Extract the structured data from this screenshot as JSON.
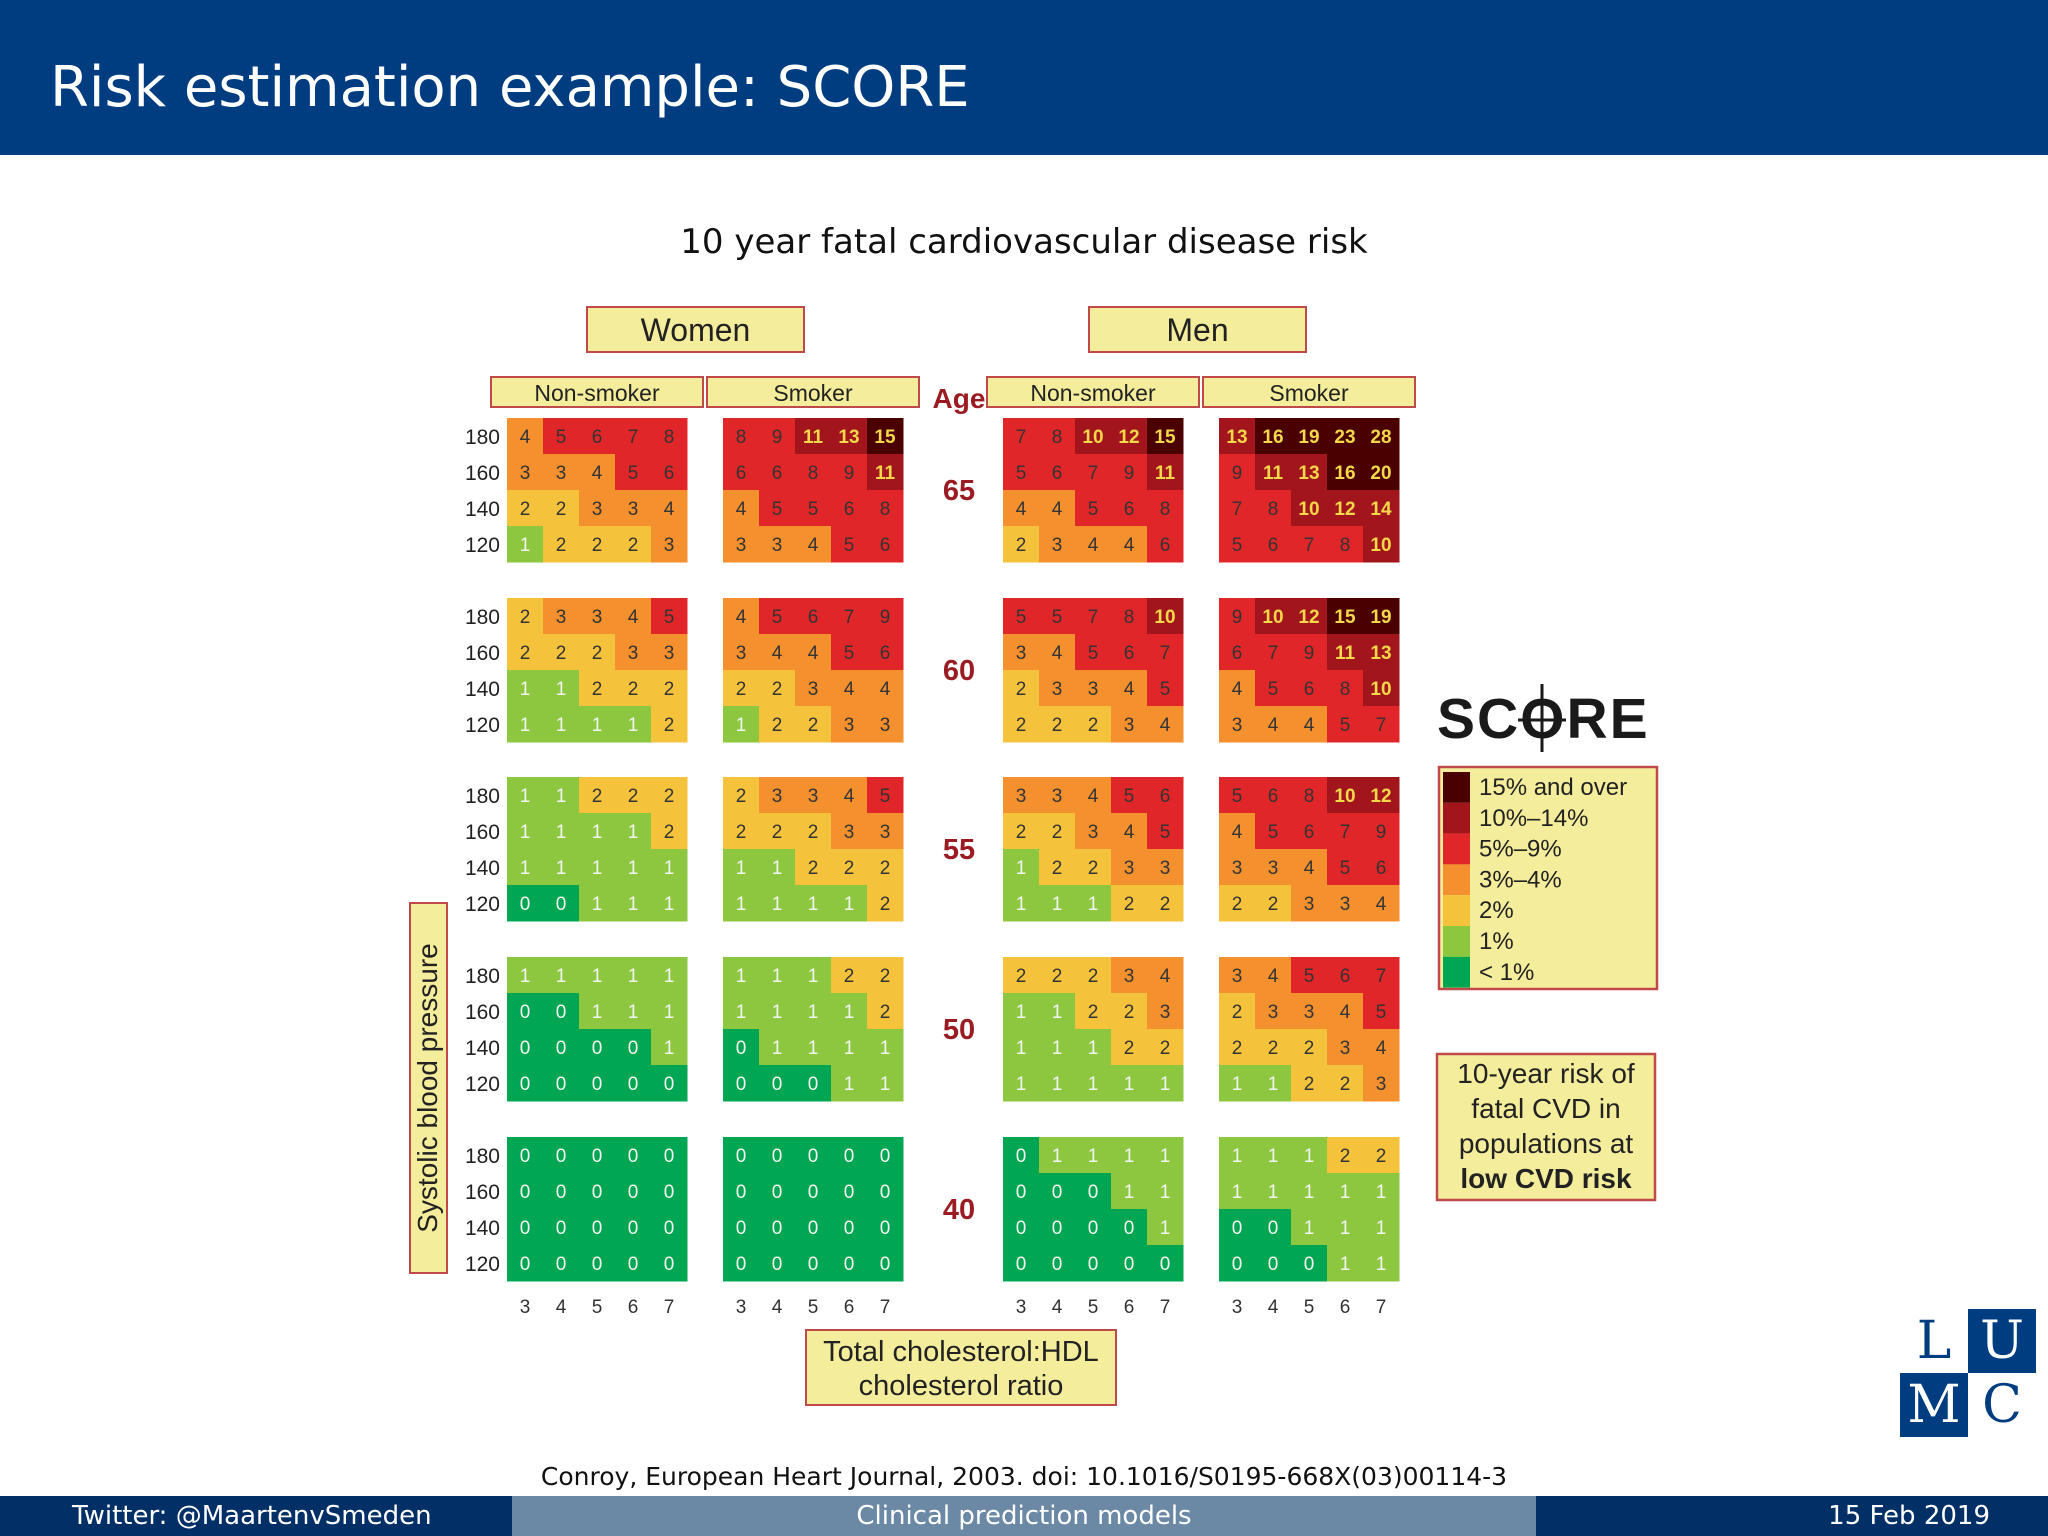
{
  "slide": {
    "title": "Risk estimation example: SCORE",
    "citation": "Conroy, European Heart Journal, 2003. doi: 10.1016/S0195-668X(03)00114-3"
  },
  "footer": {
    "left": "Twitter: @MaartenvSmeden",
    "center": "Clinical prediction models",
    "right": "15 Feb 2019"
  },
  "logo": {
    "letters": [
      "L",
      "U",
      "M",
      "C"
    ],
    "color": "#003c80"
  },
  "chart_data": {
    "type": "heatmap",
    "title": "10 year fatal cardiovascular disease risk",
    "sexes": [
      "Women",
      "Men"
    ],
    "smoking": [
      "Non-smoker",
      "Smoker"
    ],
    "age_label": "Age",
    "ages": [
      "65",
      "60",
      "55",
      "50",
      "40"
    ],
    "sbp_ticks": [
      "180",
      "160",
      "140",
      "120"
    ],
    "chol_ticks": [
      "3",
      "4",
      "5",
      "6",
      "7"
    ],
    "ylabel": "Systolic blood pressure",
    "xlabel": [
      "Total cholesterol:HDL",
      "cholesterol ratio"
    ],
    "grids": {
      "women_nonsmoker": [
        [
          [
            4,
            5,
            6,
            7,
            8
          ],
          [
            3,
            3,
            4,
            5,
            6
          ],
          [
            2,
            2,
            3,
            3,
            4
          ],
          [
            1,
            2,
            2,
            2,
            3
          ]
        ],
        [
          [
            2,
            3,
            3,
            4,
            5
          ],
          [
            2,
            2,
            2,
            3,
            3
          ],
          [
            1,
            1,
            2,
            2,
            2
          ],
          [
            1,
            1,
            1,
            1,
            2
          ]
        ],
        [
          [
            1,
            1,
            2,
            2,
            2
          ],
          [
            1,
            1,
            1,
            1,
            2
          ],
          [
            1,
            1,
            1,
            1,
            1
          ],
          [
            0,
            0,
            1,
            1,
            1
          ]
        ],
        [
          [
            1,
            1,
            1,
            1,
            1
          ],
          [
            0,
            0,
            1,
            1,
            1
          ],
          [
            0,
            0,
            0,
            0,
            1
          ],
          [
            0,
            0,
            0,
            0,
            0
          ]
        ],
        [
          [
            0,
            0,
            0,
            0,
            0
          ],
          [
            0,
            0,
            0,
            0,
            0
          ],
          [
            0,
            0,
            0,
            0,
            0
          ],
          [
            0,
            0,
            0,
            0,
            0
          ]
        ]
      ],
      "women_smoker": [
        [
          [
            8,
            9,
            11,
            13,
            15
          ],
          [
            6,
            6,
            8,
            9,
            11
          ],
          [
            4,
            5,
            5,
            6,
            8
          ],
          [
            3,
            3,
            4,
            5,
            6
          ]
        ],
        [
          [
            4,
            5,
            6,
            7,
            9
          ],
          [
            3,
            4,
            4,
            5,
            6
          ],
          [
            2,
            2,
            3,
            4,
            4
          ],
          [
            1,
            2,
            2,
            3,
            3
          ]
        ],
        [
          [
            2,
            3,
            3,
            4,
            5
          ],
          [
            2,
            2,
            2,
            3,
            3
          ],
          [
            1,
            1,
            2,
            2,
            2
          ],
          [
            1,
            1,
            1,
            1,
            2
          ]
        ],
        [
          [
            1,
            1,
            1,
            2,
            2
          ],
          [
            1,
            1,
            1,
            1,
            2
          ],
          [
            0,
            1,
            1,
            1,
            1
          ],
          [
            0,
            0,
            0,
            1,
            1
          ]
        ],
        [
          [
            0,
            0,
            0,
            0,
            0
          ],
          [
            0,
            0,
            0,
            0,
            0
          ],
          [
            0,
            0,
            0,
            0,
            0
          ],
          [
            0,
            0,
            0,
            0,
            0
          ]
        ]
      ],
      "men_nonsmoker": [
        [
          [
            7,
            8,
            10,
            12,
            15
          ],
          [
            5,
            6,
            7,
            9,
            11
          ],
          [
            4,
            4,
            5,
            6,
            8
          ],
          [
            2,
            3,
            4,
            4,
            6
          ]
        ],
        [
          [
            5,
            5,
            7,
            8,
            10
          ],
          [
            3,
            4,
            5,
            6,
            7
          ],
          [
            2,
            3,
            3,
            4,
            5
          ],
          [
            2,
            2,
            2,
            3,
            4
          ]
        ],
        [
          [
            3,
            3,
            4,
            5,
            6
          ],
          [
            2,
            2,
            3,
            4,
            5
          ],
          [
            1,
            2,
            2,
            3,
            3
          ],
          [
            1,
            1,
            1,
            2,
            2
          ]
        ],
        [
          [
            2,
            2,
            2,
            3,
            4
          ],
          [
            1,
            1,
            2,
            2,
            3
          ],
          [
            1,
            1,
            1,
            2,
            2
          ],
          [
            1,
            1,
            1,
            1,
            1
          ]
        ],
        [
          [
            0,
            1,
            1,
            1,
            1
          ],
          [
            0,
            0,
            0,
            1,
            1
          ],
          [
            0,
            0,
            0,
            0,
            1
          ],
          [
            0,
            0,
            0,
            0,
            0
          ]
        ]
      ],
      "men_smoker": [
        [
          [
            13,
            16,
            19,
            23,
            28
          ],
          [
            9,
            11,
            13,
            16,
            20
          ],
          [
            7,
            8,
            10,
            12,
            14
          ],
          [
            5,
            6,
            7,
            8,
            10
          ]
        ],
        [
          [
            9,
            10,
            12,
            15,
            19
          ],
          [
            6,
            7,
            9,
            11,
            13
          ],
          [
            4,
            5,
            6,
            8,
            10
          ],
          [
            3,
            4,
            4,
            5,
            7
          ]
        ],
        [
          [
            5,
            6,
            8,
            10,
            12
          ],
          [
            4,
            5,
            6,
            7,
            9
          ],
          [
            3,
            3,
            4,
            5,
            6
          ],
          [
            2,
            2,
            3,
            3,
            4
          ]
        ],
        [
          [
            3,
            4,
            5,
            6,
            7
          ],
          [
            2,
            3,
            3,
            4,
            5
          ],
          [
            2,
            2,
            2,
            3,
            4
          ],
          [
            1,
            1,
            2,
            2,
            3
          ]
        ],
        [
          [
            1,
            1,
            1,
            2,
            2
          ],
          [
            1,
            1,
            1,
            1,
            1
          ],
          [
            0,
            0,
            1,
            1,
            1
          ],
          [
            0,
            0,
            0,
            1,
            1
          ]
        ]
      ]
    },
    "legend": {
      "logo_text": "SCORE",
      "entries": [
        {
          "label": "15% and over",
          "color": "#4a0000"
        },
        {
          "label": "10%–14%",
          "color": "#a3151c"
        },
        {
          "label": "5%–9%",
          "color": "#e02628"
        },
        {
          "label": "3%–4%",
          "color": "#f4902e"
        },
        {
          "label": "2%",
          "color": "#f5c33b"
        },
        {
          "label": "1%",
          "color": "#8dc63f"
        },
        {
          "label": "< 1%",
          "color": "#00a651"
        }
      ],
      "note": [
        "10-year risk of",
        "fatal CVD in",
        "populations at",
        "low CVD risk"
      ]
    },
    "colors": {
      "label_box_fill": "#f4ee9c",
      "label_box_border": "#c0494a",
      "age_text": "#9b1b22",
      "cell_text_light": "#f3d84a",
      "cell_text_dark": "#333333"
    }
  }
}
